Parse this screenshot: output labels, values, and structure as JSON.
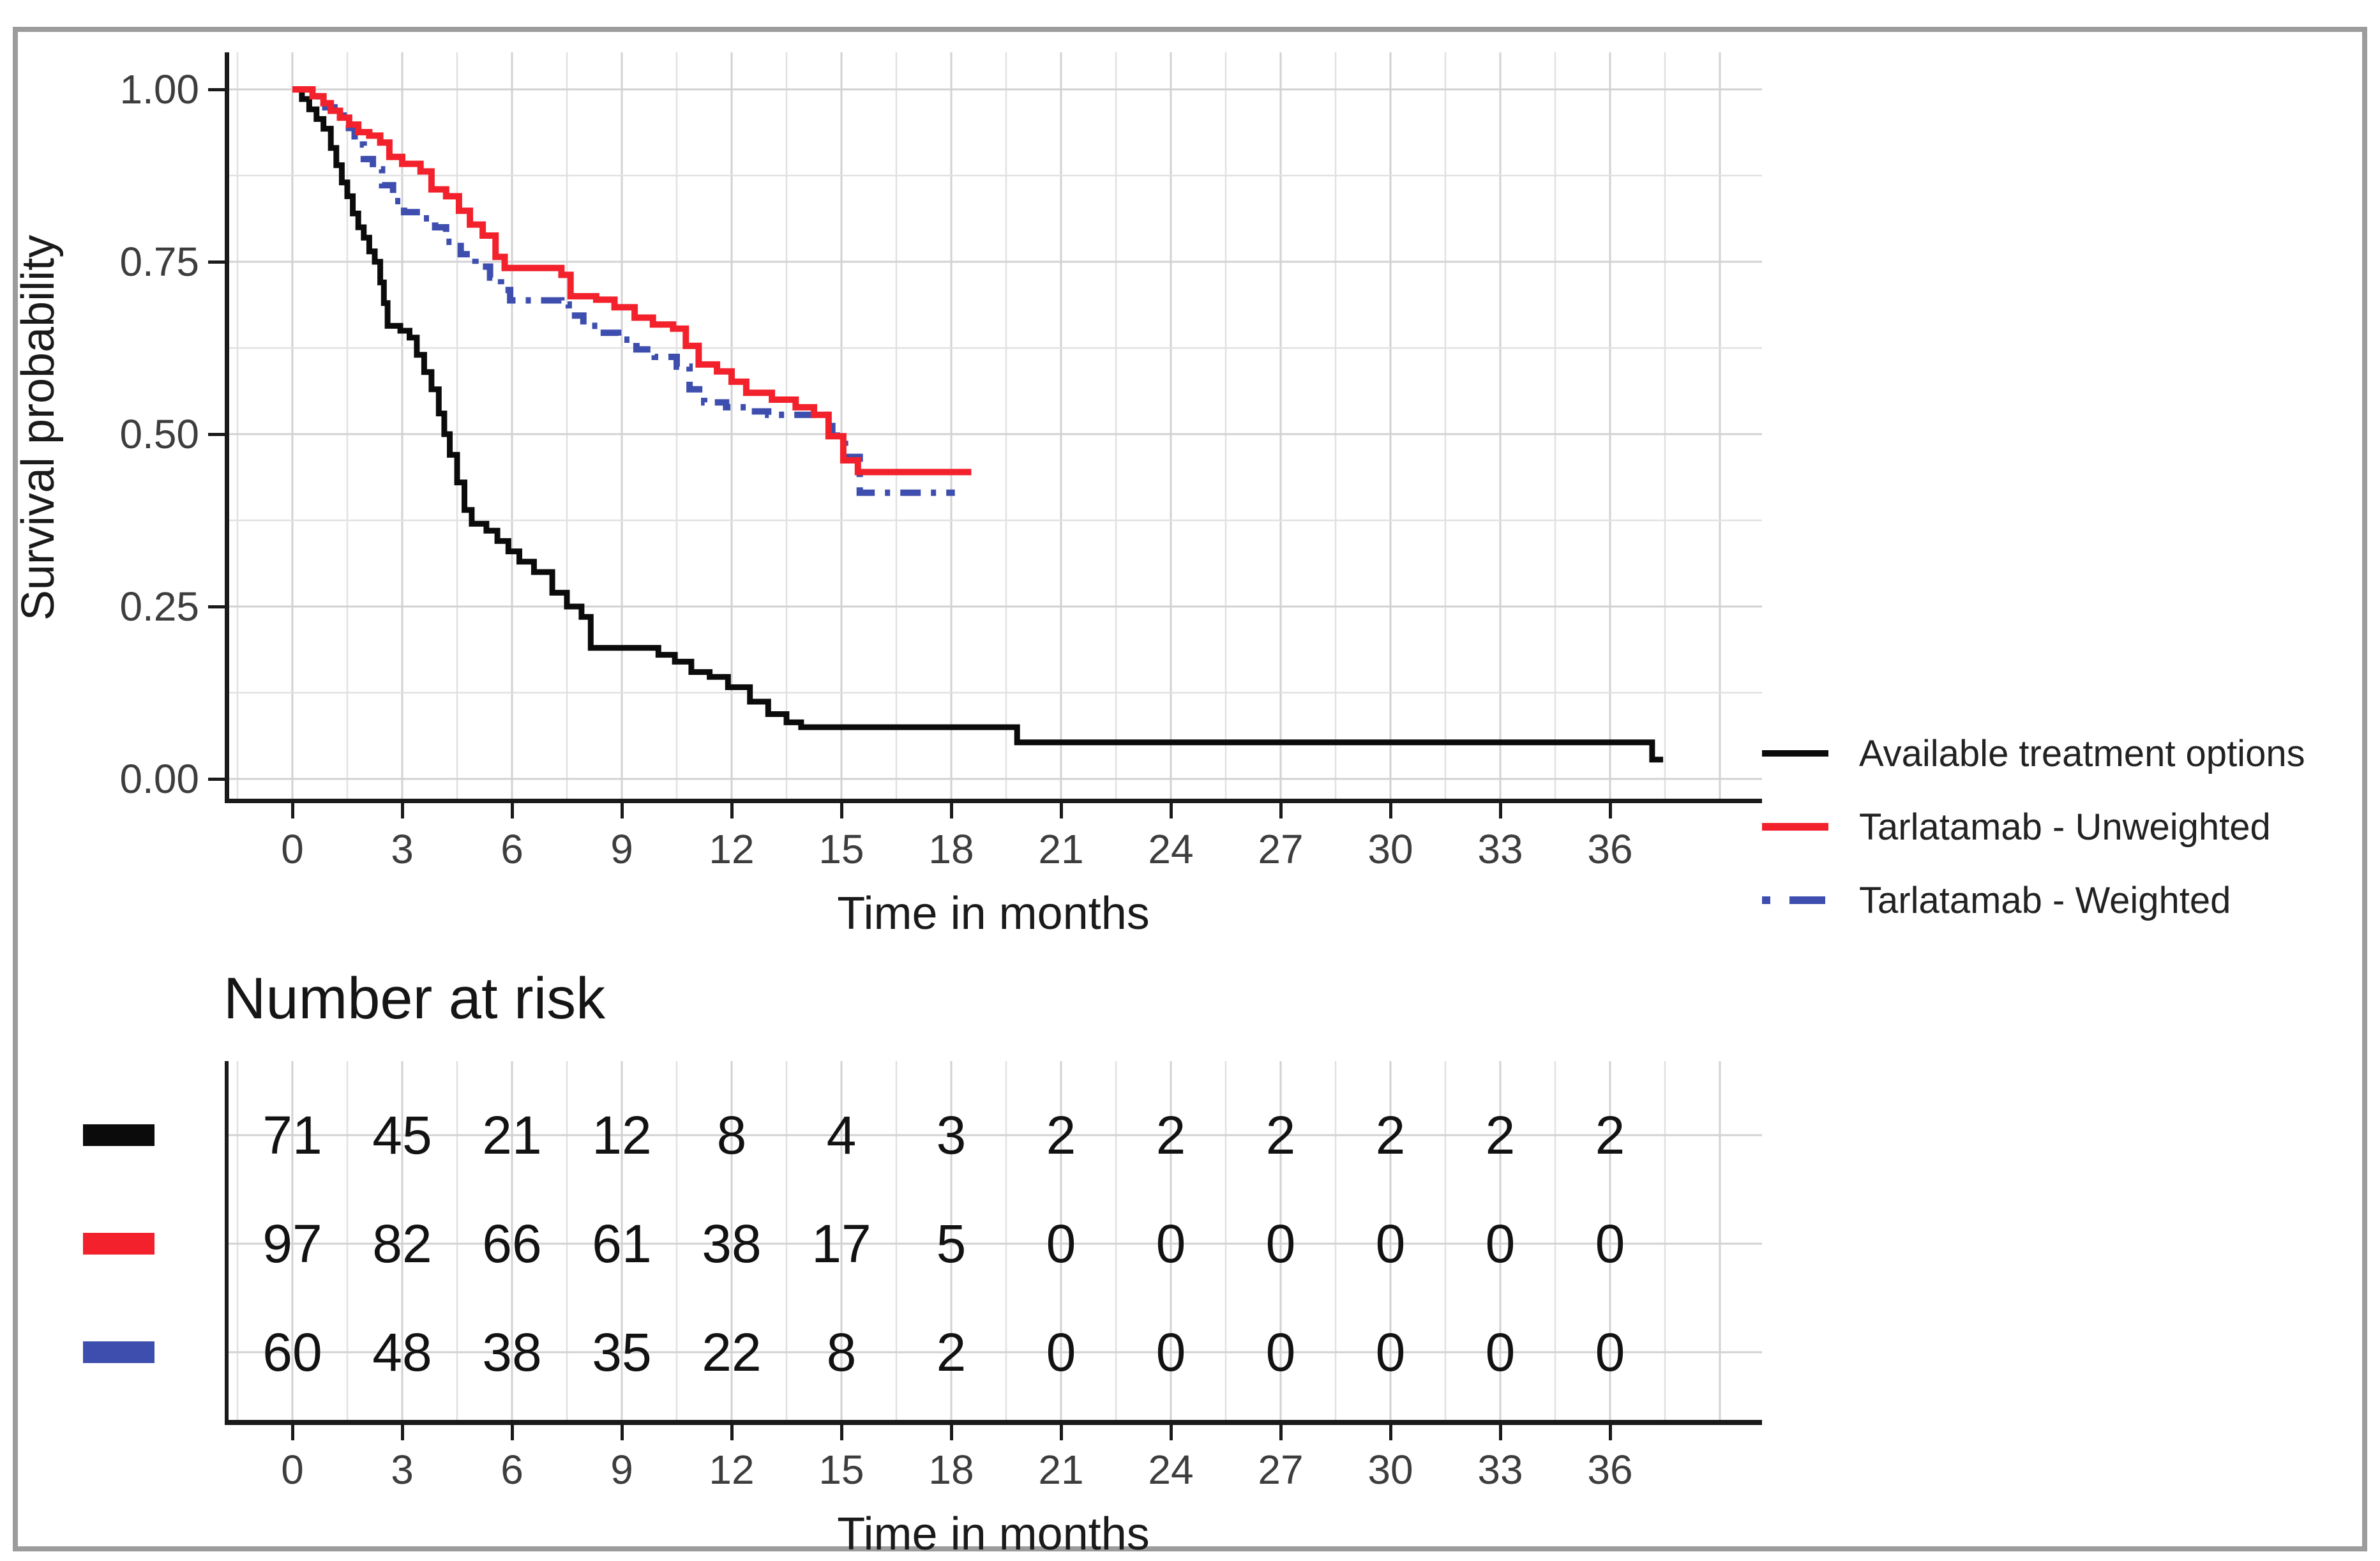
{
  "figure": {
    "background": "#ffffff",
    "frame_color": "#9c9c9c"
  },
  "chart_data": {
    "type": "line",
    "subtype": "kaplan-meier-step",
    "title": "",
    "xlabel": "Time in months",
    "ylabel": "Survival probability",
    "xlim": [
      -1.8,
      40.4
    ],
    "ylim": [
      0,
      1.05
    ],
    "x_ticks": [
      0,
      3,
      6,
      9,
      12,
      15,
      18,
      21,
      24,
      27,
      30,
      33,
      36
    ],
    "y_ticks": [
      {
        "value": 1.0,
        "label": "1.00"
      },
      {
        "value": 0.75,
        "label": "0.75"
      },
      {
        "value": 0.5,
        "label": "0.50"
      },
      {
        "value": 0.25,
        "label": "0.25"
      },
      {
        "value": 0.0,
        "label": "0.00"
      }
    ],
    "grid": {
      "x_minor_step": 1.5,
      "y_minor_step": 0.125,
      "major_color": "#d2d2d2",
      "minor_color": "#e1e1e1"
    },
    "legend_position": "right",
    "axis_color": "#1a1a1a",
    "series": [
      {
        "name": "Available treatment options",
        "color": "#0b0b0b",
        "line_style": "solid",
        "end_time": 37.45,
        "steps": [
          [
            0,
            1.0
          ],
          [
            0.26,
            0.986
          ],
          [
            0.46,
            0.971
          ],
          [
            0.66,
            0.957
          ],
          [
            0.85,
            0.943
          ],
          [
            1.05,
            0.915
          ],
          [
            1.2,
            0.89
          ],
          [
            1.35,
            0.865
          ],
          [
            1.5,
            0.845
          ],
          [
            1.65,
            0.82
          ],
          [
            1.8,
            0.8
          ],
          [
            1.95,
            0.785
          ],
          [
            2.1,
            0.765
          ],
          [
            2.25,
            0.75
          ],
          [
            2.4,
            0.72
          ],
          [
            2.5,
            0.69
          ],
          [
            2.6,
            0.657
          ],
          [
            2.95,
            0.65
          ],
          [
            3.2,
            0.64
          ],
          [
            3.4,
            0.615
          ],
          [
            3.6,
            0.59
          ],
          [
            3.8,
            0.565
          ],
          [
            4.0,
            0.53
          ],
          [
            4.15,
            0.5
          ],
          [
            4.3,
            0.47
          ],
          [
            4.5,
            0.43
          ],
          [
            4.7,
            0.39
          ],
          [
            4.9,
            0.37
          ],
          [
            5.3,
            0.36
          ],
          [
            5.6,
            0.345
          ],
          [
            5.9,
            0.33
          ],
          [
            6.2,
            0.315
          ],
          [
            6.6,
            0.3
          ],
          [
            7.1,
            0.27
          ],
          [
            7.5,
            0.25
          ],
          [
            7.9,
            0.235
          ],
          [
            8.15,
            0.19
          ],
          [
            10.0,
            0.18
          ],
          [
            10.45,
            0.17
          ],
          [
            10.9,
            0.155
          ],
          [
            11.4,
            0.148
          ],
          [
            11.9,
            0.133
          ],
          [
            12.5,
            0.112
          ],
          [
            13.0,
            0.094
          ],
          [
            13.5,
            0.082
          ],
          [
            13.9,
            0.075
          ],
          [
            19.8,
            0.053
          ],
          [
            37.15,
            0.028
          ]
        ]
      },
      {
        "name": "Tarlatamab - Unweighted",
        "color": "#f2212c",
        "line_style": "solid",
        "end_time": 18.55,
        "steps": [
          [
            0,
            1.0
          ],
          [
            0.55,
            0.99
          ],
          [
            0.85,
            0.98
          ],
          [
            1.05,
            0.969
          ],
          [
            1.3,
            0.959
          ],
          [
            1.55,
            0.949
          ],
          [
            1.8,
            0.938
          ],
          [
            2.1,
            0.933
          ],
          [
            2.4,
            0.923
          ],
          [
            2.65,
            0.902
          ],
          [
            3.0,
            0.892
          ],
          [
            3.5,
            0.881
          ],
          [
            3.8,
            0.855
          ],
          [
            4.2,
            0.845
          ],
          [
            4.55,
            0.824
          ],
          [
            4.85,
            0.804
          ],
          [
            5.2,
            0.788
          ],
          [
            5.55,
            0.757
          ],
          [
            5.8,
            0.741
          ],
          [
            7.35,
            0.731
          ],
          [
            7.6,
            0.7
          ],
          [
            8.3,
            0.695
          ],
          [
            8.8,
            0.684
          ],
          [
            9.35,
            0.669
          ],
          [
            9.85,
            0.659
          ],
          [
            10.4,
            0.653
          ],
          [
            10.75,
            0.628
          ],
          [
            11.1,
            0.601
          ],
          [
            11.6,
            0.591
          ],
          [
            12.0,
            0.576
          ],
          [
            12.4,
            0.56
          ],
          [
            13.1,
            0.55
          ],
          [
            13.75,
            0.539
          ],
          [
            14.25,
            0.528
          ],
          [
            14.65,
            0.497
          ],
          [
            15.05,
            0.462
          ],
          [
            15.45,
            0.445
          ]
        ]
      },
      {
        "name": "Tarlatamab - Weighted",
        "color": "#3e4eae",
        "line_style": "dash-dot",
        "end_time": 18.1,
        "steps": [
          [
            0,
            1.0
          ],
          [
            0.55,
            0.99
          ],
          [
            0.9,
            0.974
          ],
          [
            1.15,
            0.962
          ],
          [
            1.4,
            0.944
          ],
          [
            1.7,
            0.92
          ],
          [
            1.95,
            0.899
          ],
          [
            2.2,
            0.884
          ],
          [
            2.45,
            0.861
          ],
          [
            2.75,
            0.838
          ],
          [
            3.05,
            0.822
          ],
          [
            3.5,
            0.813
          ],
          [
            3.9,
            0.8
          ],
          [
            4.2,
            0.779
          ],
          [
            4.6,
            0.761
          ],
          [
            5.0,
            0.743
          ],
          [
            5.4,
            0.727
          ],
          [
            5.7,
            0.709
          ],
          [
            5.95,
            0.694
          ],
          [
            7.35,
            0.688
          ],
          [
            7.55,
            0.672
          ],
          [
            7.95,
            0.657
          ],
          [
            8.4,
            0.647
          ],
          [
            8.9,
            0.637
          ],
          [
            9.4,
            0.623
          ],
          [
            9.9,
            0.612
          ],
          [
            10.5,
            0.598
          ],
          [
            10.85,
            0.565
          ],
          [
            11.25,
            0.546
          ],
          [
            11.85,
            0.539
          ],
          [
            12.45,
            0.533
          ],
          [
            13.0,
            0.528
          ],
          [
            14.75,
            0.498
          ],
          [
            15.1,
            0.467
          ],
          [
            15.5,
            0.415
          ]
        ]
      }
    ]
  },
  "legend": {
    "items": [
      {
        "label": "Available treatment options",
        "color": "#0b0b0b",
        "line_style": "solid"
      },
      {
        "label": "Tarlatamab - Unweighted",
        "color": "#f2212c",
        "line_style": "solid"
      },
      {
        "label": "Tarlatamab - Weighted",
        "color": "#3e4eae",
        "line_style": "dash-dot"
      }
    ]
  },
  "risk_table": {
    "title": "Number at risk",
    "xlabel": "Time in months",
    "x_ticks": [
      0,
      3,
      6,
      9,
      12,
      15,
      18,
      21,
      24,
      27,
      30,
      33,
      36
    ],
    "rows": [
      {
        "series": "Available treatment options",
        "color": "#0b0b0b",
        "counts": [
          71,
          45,
          21,
          12,
          8,
          4,
          3,
          2,
          2,
          2,
          2,
          2,
          2
        ]
      },
      {
        "series": "Tarlatamab - Unweighted",
        "color": "#f2212c",
        "counts": [
          97,
          82,
          66,
          61,
          38,
          17,
          5,
          0,
          0,
          0,
          0,
          0,
          0
        ]
      },
      {
        "series": "Tarlatamab - Weighted",
        "color": "#3e4eae",
        "counts": [
          60,
          48,
          38,
          35,
          22,
          8,
          2,
          0,
          0,
          0,
          0,
          0,
          0
        ]
      }
    ]
  }
}
